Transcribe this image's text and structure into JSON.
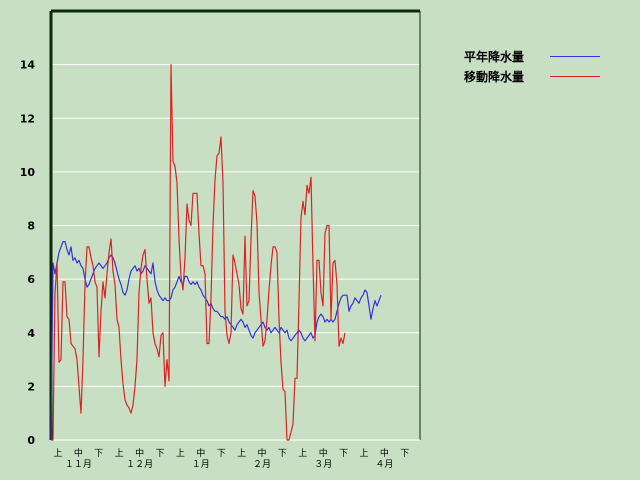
{
  "chart_data": {
    "type": "line",
    "title": "",
    "xlabel": "",
    "ylabel": "",
    "ylim": [
      0,
      16
    ],
    "y_ticks": [
      0,
      2,
      4,
      6,
      8,
      10,
      12,
      14
    ],
    "grid": "horizontal",
    "legend_position": "top-right",
    "x_labels": {
      "dekads": [
        "上",
        "中",
        "下",
        "上",
        "中",
        "下",
        "上",
        "中",
        "下",
        "上",
        "中",
        "下",
        "上",
        "中",
        "下",
        "上",
        "中",
        "下"
      ],
      "months": [
        "１１月",
        "１２月",
        "１月",
        "２月",
        "３月",
        "４月"
      ]
    },
    "series": [
      {
        "name": "平年降水量",
        "color": "#3333dd",
        "values": [
          0,
          6.6,
          6.2,
          6.6,
          7.0,
          7.2,
          7.4,
          7.4,
          7.1,
          6.9,
          7.2,
          6.7,
          6.8,
          6.6,
          6.7,
          6.5,
          6.4,
          6.0,
          5.7,
          5.8,
          6.0,
          6.2,
          6.4,
          6.5,
          6.6,
          6.5,
          6.4,
          6.5,
          6.6,
          6.8,
          6.9,
          6.8,
          6.6,
          6.3,
          6.0,
          5.8,
          5.5,
          5.4,
          5.6,
          6.0,
          6.3,
          6.4,
          6.5,
          6.3,
          6.4,
          6.2,
          6.3,
          6.5,
          6.4,
          6.3,
          6.2,
          6.6,
          5.9,
          5.6,
          5.4,
          5.3,
          5.2,
          5.3,
          5.2,
          5.2,
          5.3,
          5.6,
          5.7,
          5.9,
          6.1,
          5.9,
          5.8,
          6.1,
          6.1,
          5.9,
          5.8,
          5.9,
          5.8,
          5.9,
          5.7,
          5.6,
          5.4,
          5.3,
          5.2,
          5.0,
          5.1,
          4.9,
          4.8,
          4.8,
          4.7,
          4.6,
          4.6,
          4.5,
          4.6,
          4.4,
          4.3,
          4.2,
          4.1,
          4.3,
          4.4,
          4.5,
          4.4,
          4.2,
          4.3,
          4.1,
          3.9,
          3.8,
          4.0,
          4.1,
          4.2,
          4.3,
          4.4,
          4.2,
          4.1,
          4.2,
          4.0,
          4.1,
          4.2,
          4.1,
          4.0,
          4.2,
          4.1,
          4.0,
          4.1,
          3.8,
          3.7,
          3.8,
          3.9,
          4.0,
          4.1,
          4.0,
          3.8,
          3.7,
          3.8,
          3.9,
          4.0,
          3.8,
          3.9,
          4.4,
          4.6,
          4.7,
          4.6,
          4.4,
          4.5,
          4.4,
          4.5,
          4.4,
          4.5,
          4.8,
          5.1,
          5.3,
          5.4,
          5.4,
          5.4,
          4.8,
          5.0,
          5.1,
          5.3,
          5.2,
          5.1,
          5.3,
          5.4,
          5.6,
          5.5,
          5.0,
          4.5,
          4.9,
          5.2,
          5.0,
          5.2,
          5.4
        ]
      },
      {
        "name": "移動降水量",
        "color": "#dd2222",
        "values": [
          0,
          0,
          5.5,
          6.6,
          2.9,
          3.0,
          5.9,
          5.9,
          4.6,
          4.5,
          3.6,
          3.5,
          3.4,
          3.0,
          2.0,
          1.0,
          3.0,
          5.8,
          7.2,
          7.2,
          6.8,
          6.5,
          5.9,
          5.7,
          3.1,
          4.8,
          5.9,
          5.3,
          6.2,
          7.0,
          7.5,
          6.3,
          5.8,
          4.5,
          4.2,
          3.0,
          2.1,
          1.5,
          1.3,
          1.2,
          1.0,
          1.3,
          2.0,
          3.0,
          5.5,
          6.4,
          6.9,
          7.1,
          6.0,
          5.1,
          5.3,
          4.0,
          3.6,
          3.4,
          3.1,
          3.9,
          4.0,
          2.0,
          3.0,
          2.2,
          14.0,
          10.4,
          10.2,
          9.6,
          7.5,
          6.1,
          5.6,
          6.8,
          8.8,
          8.2,
          8.0,
          9.2,
          9.2,
          9.2,
          7.7,
          6.5,
          6.5,
          6.2,
          3.6,
          3.6,
          5.3,
          8.0,
          9.7,
          10.6,
          10.7,
          11.3,
          9.6,
          4.8,
          3.9,
          3.6,
          4.0,
          6.9,
          6.6,
          6.2,
          5.8,
          4.9,
          4.7,
          7.6,
          5.0,
          5.2,
          7.5,
          9.3,
          9.1,
          8.1,
          5.5,
          4.5,
          3.5,
          3.7,
          4.5,
          5.6,
          6.5,
          7.2,
          7.2,
          7.0,
          4.5,
          2.9,
          1.9,
          1.8,
          0.0,
          0.0,
          0.3,
          0.6,
          2.3,
          2.3,
          5.2,
          8.3,
          8.9,
          8.4,
          9.5,
          9.2,
          9.8,
          6.5,
          3.7,
          6.7,
          6.7,
          5.5,
          5.0,
          7.7,
          8.0,
          8.0,
          4.5,
          6.6,
          6.7,
          5.8,
          3.5,
          3.8,
          3.6,
          4.0
        ]
      }
    ]
  }
}
